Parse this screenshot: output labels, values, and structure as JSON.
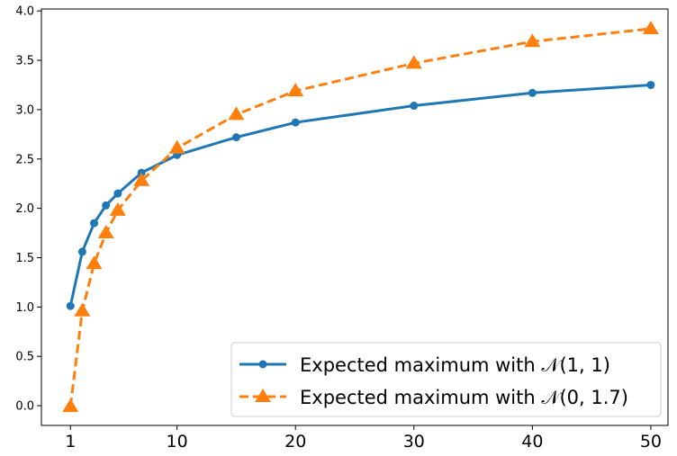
{
  "chart_data": {
    "type": "line",
    "title": "",
    "xlabel": "",
    "ylabel": "",
    "xlim": [
      -1.45,
      51.45
    ],
    "ylim": [
      -0.2,
      4.02
    ],
    "xticks": [
      1,
      10,
      20,
      30,
      40,
      50
    ],
    "xtick_labels": [
      "1",
      "10",
      "20",
      "30",
      "40",
      "50"
    ],
    "yticks": [
      0.0,
      0.5,
      1.0,
      1.5,
      2.0,
      2.5,
      3.0,
      3.5,
      4.0
    ],
    "ytick_labels": [
      "0.0",
      "0.5",
      "1.0",
      "1.5",
      "2.0",
      "2.5",
      "3.0",
      "3.5",
      "4.0"
    ],
    "grid": false,
    "legend_position": "lower-right",
    "series": [
      {
        "name": "Expected maximum with 𝒩(1, 1)",
        "color": "#1f77b4",
        "line_style": "solid",
        "marker": "circle",
        "x": [
          1,
          2,
          3,
          4,
          5,
          7,
          10,
          15,
          20,
          30,
          40,
          50
        ],
        "y": [
          1.01,
          1.56,
          1.85,
          2.03,
          2.15,
          2.36,
          2.54,
          2.72,
          2.87,
          3.04,
          3.17,
          3.25
        ]
      },
      {
        "name": "Expected maximum with 𝒩(0, 1.7)",
        "color": "#ff7f0e",
        "line_style": "dashed",
        "marker": "triangle",
        "x": [
          1,
          2,
          3,
          4,
          5,
          7,
          10,
          15,
          20,
          30,
          40,
          50
        ],
        "y": [
          -0.01,
          0.96,
          1.44,
          1.75,
          1.98,
          2.28,
          2.61,
          2.95,
          3.19,
          3.47,
          3.69,
          3.82
        ]
      }
    ]
  }
}
